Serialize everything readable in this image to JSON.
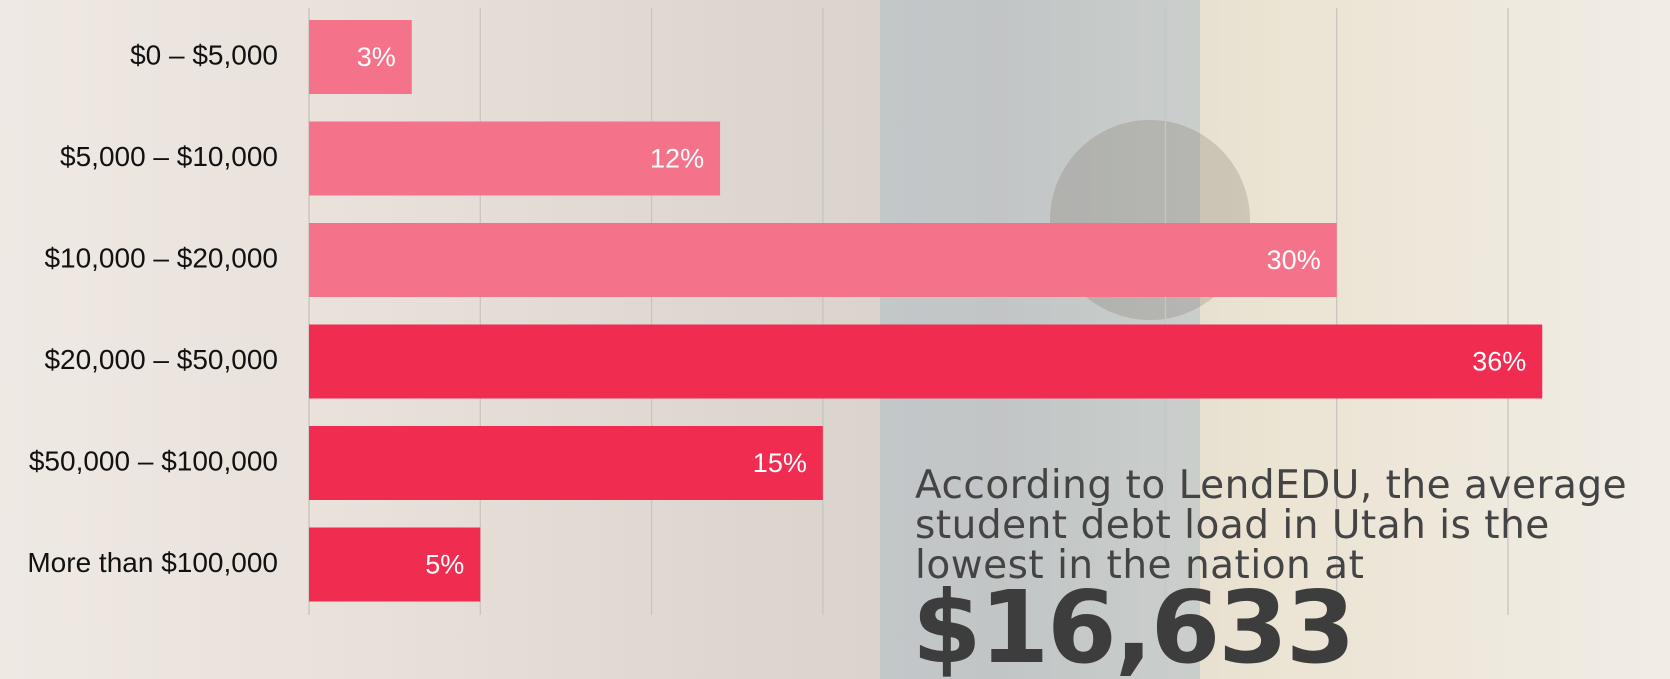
{
  "chart_data": {
    "type": "barh",
    "categories": [
      "$0 – $5,000",
      "$5,000 – $10,000",
      "$10,000 – $20,000",
      "$20,000 – $50,000",
      "$50,000 – $100,000",
      "More than $100,000"
    ],
    "values": [
      3,
      12,
      30,
      36,
      15,
      5
    ],
    "value_labels": [
      "3%",
      "12%",
      "30%",
      "36%",
      "15%",
      "5%"
    ],
    "colors": [
      "#f4738a",
      "#f4738a",
      "#f4738a",
      "#f02c50",
      "#f02c50",
      "#f02c50"
    ],
    "xlim": [
      0,
      35
    ],
    "xticks": [
      0,
      5,
      10,
      15,
      20,
      25,
      30,
      35
    ],
    "grid": true,
    "annotation": "According to LendEDU, the average student debt load in Utah is the lowest in the nation at",
    "highlight": "$16,633"
  }
}
